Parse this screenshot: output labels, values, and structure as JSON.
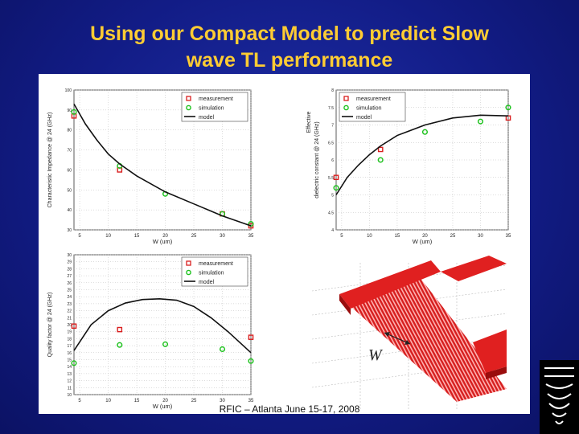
{
  "slide": {
    "title_line1": "Using our Compact Model to predict Slow",
    "title_line2": "wave TL performance",
    "footer": "RFIC – Atlanta June 15-17, 2008",
    "title_color": "#ffcc33"
  },
  "structure_label": "W",
  "chart_data": [
    {
      "type": "scatter",
      "id": "impedance",
      "ylabel_line1": "Characteristic Impedance",
      "ylabel_line2": "@ 24 (GHz)",
      "xlabel": "W (um)",
      "xlim": [
        4,
        35
      ],
      "ylim": [
        30,
        100
      ],
      "xticks": [
        "5",
        "10",
        "15",
        "20",
        "25",
        "30",
        "35"
      ],
      "yticks": [
        "30",
        "40",
        "50",
        "60",
        "70",
        "80",
        "90",
        "100"
      ],
      "legend": {
        "measurement": "measurement",
        "simulation": "simulation",
        "model": "model"
      },
      "series": [
        {
          "name": "measurement",
          "x": [
            4,
            12,
            30,
            35
          ],
          "y": [
            87,
            60,
            38,
            32
          ]
        },
        {
          "name": "simulation",
          "x": [
            4,
            12,
            20,
            30,
            35
          ],
          "y": [
            89,
            62,
            48,
            38,
            33
          ]
        },
        {
          "name": "model",
          "x": [
            4,
            6,
            8,
            10,
            12,
            15,
            20,
            25,
            30,
            35
          ],
          "y": [
            93,
            83,
            75,
            68,
            63,
            57,
            49,
            43,
            37,
            32
          ]
        }
      ]
    },
    {
      "type": "scatter",
      "id": "dielectric",
      "ylabel_line1": "Effective",
      "ylabel_line2": "dielectric constant @ 24 (GHz)",
      "xlabel": "W (um)",
      "xlim": [
        4,
        35
      ],
      "ylim": [
        4,
        8
      ],
      "xticks": [
        "5",
        "10",
        "15",
        "20",
        "25",
        "30",
        "35"
      ],
      "yticks": [
        "4",
        "4.5",
        "5",
        "5.5",
        "6",
        "6.5",
        "7",
        "7.5",
        "8"
      ],
      "legend": {
        "measurement": "measurement",
        "simulation": "simulation",
        "model": "model"
      },
      "series": [
        {
          "name": "measurement",
          "x": [
            4,
            12,
            35
          ],
          "y": [
            5.5,
            6.3,
            7.2
          ]
        },
        {
          "name": "simulation",
          "x": [
            4,
            12,
            20,
            30,
            35
          ],
          "y": [
            5.2,
            6.0,
            6.8,
            7.1,
            7.5
          ]
        },
        {
          "name": "model",
          "x": [
            4,
            6,
            8,
            10,
            12,
            15,
            20,
            25,
            30,
            35
          ],
          "y": [
            5.0,
            5.5,
            5.85,
            6.15,
            6.4,
            6.7,
            7.0,
            7.2,
            7.28,
            7.26
          ]
        }
      ]
    },
    {
      "type": "scatter",
      "id": "quality",
      "ylabel_line1": "Quality factor",
      "ylabel_line2": "@ 24 (GHz)",
      "xlabel": "W (um)",
      "xlim": [
        4,
        35
      ],
      "ylim": [
        10,
        30
      ],
      "xticks": [
        "5",
        "10",
        "15",
        "20",
        "25",
        "30",
        "35"
      ],
      "yticks": [
        "10",
        "11",
        "12",
        "13",
        "14",
        "15",
        "16",
        "17",
        "18",
        "19",
        "20",
        "21",
        "22",
        "23",
        "24",
        "25",
        "26",
        "27",
        "28",
        "29",
        "30"
      ],
      "legend": {
        "measurement": "measurement",
        "simulation": "simulation",
        "model": "model"
      },
      "series": [
        {
          "name": "measurement",
          "x": [
            4,
            12,
            35
          ],
          "y": [
            19.8,
            19.3,
            18.2
          ]
        },
        {
          "name": "simulation",
          "x": [
            4,
            12,
            20,
            30,
            35
          ],
          "y": [
            14.5,
            17.1,
            17.2,
            16.5,
            14.8
          ]
        },
        {
          "name": "model",
          "x": [
            4,
            7,
            10,
            13,
            16,
            19,
            22,
            25,
            28,
            31,
            35
          ],
          "y": [
            16.3,
            20.0,
            22.0,
            23.1,
            23.6,
            23.7,
            23.5,
            22.6,
            21.0,
            19.0,
            16.0
          ]
        }
      ]
    }
  ]
}
